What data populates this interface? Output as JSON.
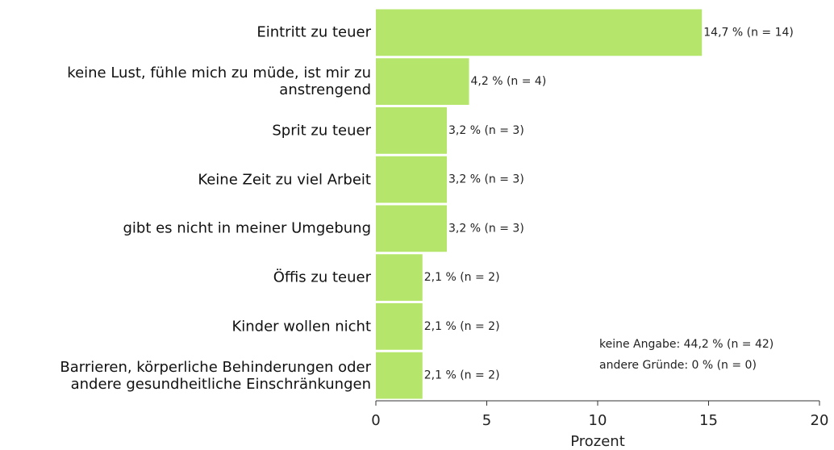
{
  "chart_data": {
    "type": "hbar",
    "categories": [
      "Eintritt zu teuer",
      "keine Lust, fühle mich zu müde, ist mir zu anstrengend",
      "Sprit zu teuer",
      "Keine Zeit zu viel Arbeit",
      "gibt es nicht in meiner Umgebung",
      "Öffis zu teuer",
      "Kinder wollen nicht",
      "Barrieren, körperliche Behinderungen oder andere gesundheitliche Einschränkungen"
    ],
    "values": [
      14.7,
      4.2,
      3.2,
      3.2,
      3.2,
      2.1,
      2.1,
      2.1
    ],
    "value_labels": [
      "14,7 % (n = 14)",
      "4,2 % (n = 4)",
      "3,2 % (n = 3)",
      "3,2 % (n = 3)",
      "3,2 % (n = 3)",
      "2,1 % (n = 2)",
      "2,1 % (n = 2)",
      "2,1 % (n = 2)"
    ],
    "color": "#b5e56b",
    "xlabel": "Prozent",
    "xlim": [
      0,
      20
    ],
    "xticks": [
      0,
      5,
      10,
      15,
      20
    ],
    "annotations": [
      "keine Angabe: 44,2 % (n = 42)",
      "andere Gründe: 0 % (n = 0)"
    ]
  }
}
